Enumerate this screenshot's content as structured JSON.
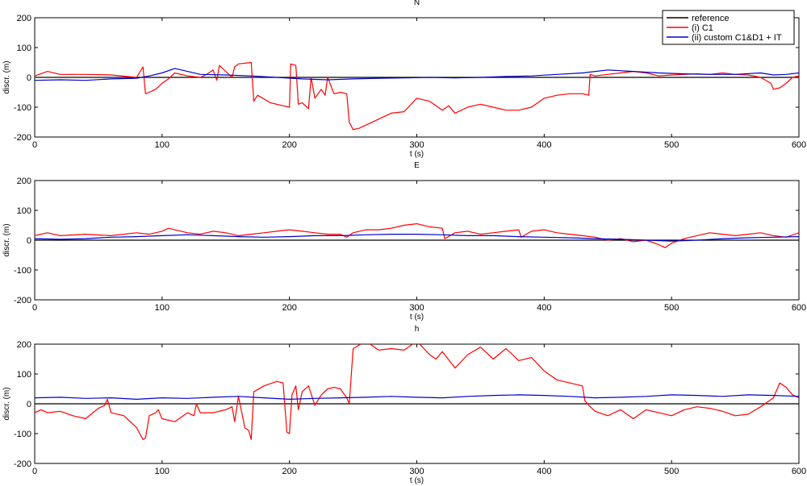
{
  "chart_data": [
    {
      "type": "line",
      "title": "N",
      "xlabel": "t (s)",
      "ylabel": "discr. (m)",
      "xlim": [
        0,
        600
      ],
      "ylim": [
        -200,
        200
      ],
      "xticks": [
        0,
        100,
        200,
        300,
        400,
        500,
        600
      ],
      "yticks": [
        -200,
        -100,
        0,
        100,
        200
      ],
      "grid": false,
      "legend": {
        "placement": "top-right",
        "entries": [
          "reference",
          "(i) C1",
          "(ii) custom C1&D1 + IT"
        ]
      },
      "series": [
        {
          "name": "reference",
          "color": "#000000",
          "x": [
            0,
            600
          ],
          "y": [
            0,
            0
          ]
        },
        {
          "name": "(i) C1",
          "color": "#ff0000",
          "x": [
            0,
            10,
            20,
            40,
            60,
            80,
            85,
            87,
            90,
            95,
            100,
            105,
            110,
            120,
            130,
            135,
            140,
            143,
            145,
            155,
            157,
            160,
            170,
            172,
            175,
            185,
            195,
            200,
            201,
            205,
            207,
            210,
            215,
            217,
            220,
            225,
            228,
            230,
            235,
            240,
            245,
            247,
            250,
            255,
            260,
            270,
            280,
            290,
            300,
            310,
            320,
            325,
            330,
            340,
            350,
            360,
            370,
            380,
            390,
            400,
            410,
            420,
            430,
            435,
            436,
            440,
            450,
            460,
            470,
            480,
            490,
            500,
            510,
            520,
            530,
            540,
            550,
            560,
            570,
            578,
            580,
            585,
            590,
            595,
            600
          ],
          "y": [
            5,
            20,
            10,
            10,
            8,
            0,
            35,
            -55,
            -50,
            -40,
            -20,
            -5,
            15,
            5,
            0,
            10,
            25,
            -10,
            40,
            0,
            35,
            45,
            50,
            -80,
            -60,
            -85,
            -95,
            -100,
            45,
            40,
            -90,
            -85,
            -105,
            0,
            -70,
            -40,
            -60,
            0,
            -55,
            -50,
            -55,
            -150,
            -175,
            -170,
            -160,
            -140,
            -120,
            -115,
            -70,
            -80,
            -110,
            -95,
            -120,
            -100,
            -90,
            -100,
            -110,
            -110,
            -100,
            -70,
            -60,
            -55,
            -55,
            -60,
            10,
            5,
            10,
            15,
            20,
            15,
            5,
            8,
            10,
            12,
            10,
            15,
            10,
            8,
            0,
            -20,
            -40,
            -35,
            -20,
            0,
            5
          ]
        },
        {
          "name": "(ii) custom C1&D1 + IT",
          "color": "#0000cc",
          "x": [
            0,
            20,
            40,
            60,
            80,
            90,
            100,
            110,
            120,
            130,
            150,
            170,
            190,
            210,
            230,
            250,
            270,
            290,
            310,
            330,
            350,
            370,
            390,
            410,
            430,
            450,
            470,
            490,
            510,
            530,
            550,
            570,
            580,
            590,
            600
          ],
          "y": [
            -10,
            -8,
            -10,
            -5,
            -3,
            5,
            15,
            30,
            20,
            10,
            8,
            5,
            0,
            -5,
            -8,
            -5,
            -3,
            -2,
            0,
            -2,
            0,
            3,
            5,
            10,
            15,
            25,
            20,
            15,
            12,
            10,
            10,
            15,
            8,
            10,
            15
          ]
        }
      ]
    },
    {
      "type": "line",
      "title": "E",
      "xlabel": "t (s)",
      "ylabel": "discr. (m)",
      "xlim": [
        0,
        600
      ],
      "ylim": [
        -200,
        200
      ],
      "xticks": [
        0,
        100,
        200,
        300,
        400,
        500,
        600
      ],
      "yticks": [
        -200,
        -100,
        0,
        100,
        200
      ],
      "grid": false,
      "series": [
        {
          "name": "reference",
          "color": "#000000",
          "x": [
            0,
            600
          ],
          "y": [
            0,
            0
          ]
        },
        {
          "name": "(i) C1",
          "color": "#ff0000",
          "x": [
            0,
            10,
            20,
            40,
            60,
            80,
            90,
            100,
            105,
            110,
            120,
            130,
            140,
            150,
            160,
            170,
            180,
            190,
            200,
            210,
            220,
            230,
            240,
            245,
            250,
            260,
            270,
            280,
            290,
            300,
            310,
            320,
            322,
            330,
            340,
            350,
            360,
            370,
            380,
            382,
            390,
            400,
            410,
            420,
            430,
            440,
            450,
            460,
            470,
            480,
            490,
            495,
            500,
            510,
            520,
            530,
            540,
            550,
            560,
            570,
            580,
            590,
            600
          ],
          "y": [
            15,
            25,
            15,
            20,
            15,
            25,
            20,
            30,
            40,
            35,
            25,
            20,
            30,
            25,
            15,
            20,
            25,
            30,
            35,
            30,
            25,
            20,
            20,
            10,
            25,
            35,
            35,
            40,
            50,
            55,
            45,
            40,
            5,
            25,
            30,
            20,
            25,
            30,
            35,
            10,
            30,
            35,
            25,
            20,
            15,
            10,
            0,
            5,
            -5,
            0,
            -15,
            -25,
            -10,
            5,
            15,
            25,
            20,
            15,
            20,
            25,
            15,
            10,
            25
          ]
        },
        {
          "name": "(ii) custom C1&D1 + IT",
          "color": "#0000cc",
          "x": [
            0,
            20,
            40,
            60,
            80,
            100,
            120,
            140,
            160,
            180,
            200,
            220,
            240,
            260,
            280,
            300,
            320,
            340,
            360,
            380,
            400,
            420,
            440,
            460,
            480,
            500,
            520,
            540,
            560,
            580,
            600
          ],
          "y": [
            5,
            3,
            5,
            10,
            12,
            15,
            18,
            15,
            12,
            10,
            12,
            15,
            15,
            18,
            20,
            20,
            18,
            15,
            15,
            12,
            10,
            8,
            5,
            3,
            0,
            -3,
            0,
            5,
            8,
            10,
            12
          ]
        }
      ]
    },
    {
      "type": "line",
      "title": "h",
      "xlabel": "t (s)",
      "ylabel": "discr. (m)",
      "xlim": [
        0,
        600
      ],
      "ylim": [
        -200,
        200
      ],
      "xticks": [
        0,
        100,
        200,
        300,
        400,
        500,
        600
      ],
      "yticks": [
        -200,
        -100,
        0,
        100,
        200
      ],
      "grid": false,
      "series": [
        {
          "name": "reference",
          "color": "#000000",
          "x": [
            0,
            600
          ],
          "y": [
            0,
            0
          ]
        },
        {
          "name": "(i) C1",
          "color": "#ff0000",
          "x": [
            0,
            5,
            10,
            20,
            30,
            40,
            50,
            55,
            57,
            60,
            70,
            80,
            85,
            87,
            90,
            95,
            97,
            100,
            110,
            120,
            125,
            127,
            130,
            140,
            150,
            155,
            157,
            160,
            165,
            168,
            170,
            172,
            180,
            190,
            195,
            198,
            200,
            202,
            205,
            207,
            210,
            215,
            220,
            225,
            230,
            235,
            240,
            245,
            247,
            250,
            260,
            270,
            280,
            290,
            300,
            310,
            315,
            320,
            330,
            340,
            350,
            360,
            370,
            380,
            390,
            400,
            410,
            420,
            430,
            432,
            435,
            440,
            450,
            460,
            470,
            480,
            490,
            500,
            510,
            520,
            530,
            540,
            550,
            560,
            570,
            580,
            585,
            590,
            595,
            600
          ],
          "y": [
            -30,
            -20,
            -30,
            -25,
            -40,
            -50,
            -15,
            -5,
            15,
            -30,
            -40,
            -80,
            -120,
            -115,
            -40,
            -30,
            -20,
            -50,
            -60,
            -30,
            -40,
            0,
            -30,
            -30,
            -20,
            -10,
            -60,
            25,
            -80,
            -90,
            -120,
            40,
            60,
            75,
            70,
            -95,
            -100,
            30,
            60,
            -20,
            40,
            60,
            -5,
            30,
            50,
            55,
            50,
            20,
            0,
            185,
            210,
            180,
            185,
            180,
            210,
            165,
            150,
            175,
            120,
            165,
            190,
            150,
            185,
            145,
            155,
            110,
            80,
            70,
            60,
            10,
            -5,
            -25,
            -40,
            -20,
            -50,
            -20,
            -30,
            -40,
            -20,
            -10,
            -15,
            -25,
            -40,
            -35,
            -10,
            20,
            70,
            55,
            30,
            20
          ]
        },
        {
          "name": "(ii) custom C1&D1 + IT",
          "color": "#0000cc",
          "x": [
            0,
            20,
            40,
            60,
            80,
            100,
            120,
            140,
            160,
            180,
            200,
            220,
            240,
            260,
            280,
            300,
            320,
            340,
            360,
            380,
            400,
            420,
            440,
            460,
            480,
            500,
            520,
            540,
            560,
            580,
            600
          ],
          "y": [
            20,
            22,
            18,
            20,
            15,
            20,
            18,
            22,
            25,
            20,
            15,
            18,
            20,
            22,
            25,
            22,
            20,
            25,
            28,
            30,
            28,
            25,
            20,
            22,
            25,
            30,
            28,
            25,
            30,
            28,
            25
          ]
        }
      ]
    }
  ]
}
